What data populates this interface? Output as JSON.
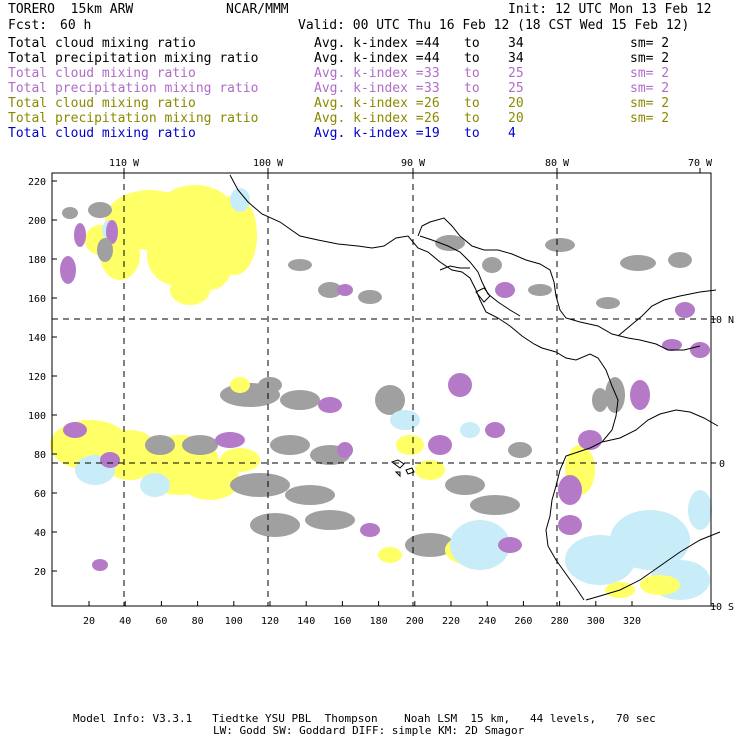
{
  "header": {
    "model": "TORERO  15km ARW",
    "org": "NCAR/MMM",
    "init": "Init: 12 UTC Mon 13 Feb 12",
    "fcst_label": "Fcst:",
    "fcst_value": "60 h",
    "valid": "Valid: 00 UTC Thu 16 Feb 12 (18 CST Wed 15 Feb 12)"
  },
  "legend": [
    {
      "field": "Total cloud mixing ratio",
      "index_label": "Avg. k-index =",
      "from": "44",
      "to_word": "to",
      "to": "34",
      "sm": "sm= 2",
      "color": "#000000"
    },
    {
      "field": "Total precipitation mixing ratio",
      "index_label": "Avg. k-index =",
      "from": "44",
      "to_word": "to",
      "to": "34",
      "sm": "sm= 2",
      "color": "#000000"
    },
    {
      "field": "Total cloud mixing ratio",
      "index_label": "Avg. k-index =",
      "from": "33",
      "to_word": "to",
      "to": "25",
      "sm": "sm= 2",
      "color": "#b06cc8"
    },
    {
      "field": "Total precipitation mixing ratio",
      "index_label": "Avg. k-index =",
      "from": "33",
      "to_word": "to",
      "to": "25",
      "sm": "sm= 2",
      "color": "#b06cc8"
    },
    {
      "field": "Total cloud mixing ratio",
      "index_label": "Avg. k-index =",
      "from": "26",
      "to_word": "to",
      "to": "20",
      "sm": "sm= 2",
      "color": "#8a8a00"
    },
    {
      "field": "Total precipitation mixing ratio",
      "index_label": "Avg. k-index =",
      "from": "26",
      "to_word": "to",
      "to": "20",
      "sm": "sm= 2",
      "color": "#8a8a00"
    },
    {
      "field": "Total cloud mixing ratio",
      "index_label": "Avg. k-index =",
      "from": "19",
      "to_word": "to",
      "to": "4",
      "sm": "",
      "color": "#0000cc"
    }
  ],
  "map": {
    "lon_labels": [
      "110 W",
      "100 W",
      "90 W",
      "80 W",
      "70 W"
    ],
    "lat_labels": [
      "10 N",
      "0",
      "10 S"
    ],
    "y_ticks": [
      "220",
      "200",
      "180",
      "160",
      "140",
      "120",
      "100",
      "80",
      "60",
      "40",
      "20"
    ],
    "x_ticks": [
      "20",
      "40",
      "60",
      "80",
      "100",
      "120",
      "140",
      "160",
      "180",
      "200",
      "220",
      "240",
      "260",
      "280",
      "300",
      "320"
    ],
    "colors": {
      "gray": "#a0a0a0",
      "purple": "#b47ac8",
      "yellow": "#ffff66",
      "lightblue": "#c8ecf8",
      "coast": "#000000",
      "grid": "#000000"
    }
  },
  "footer": {
    "line1": "Model Info: V3.3.1   Tiedtke YSU PBL  Thompson    Noah LSM  15 km,   44 levels,   70 sec",
    "line2": "LW: Godd SW: Goddard DIFF: simple KM: 2D Smagor"
  }
}
